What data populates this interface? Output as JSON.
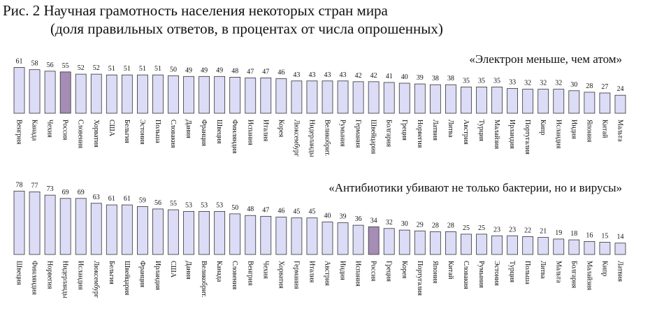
{
  "header": {
    "title": "Рис. 2 Научная грамотность населения некоторых стран мира",
    "subtitle": "(доля правильных ответов, в процентах от числа опрошенных)"
  },
  "chart_data": [
    {
      "type": "bar",
      "title": "«Электрон меньше, чем атом»",
      "categories": [
        "Венгрия",
        "Канада",
        "Чехия",
        "Россия",
        "Словения",
        "Хорватия",
        "США",
        "Бельгия",
        "Эстония",
        "Польша",
        "Словакия",
        "Дания",
        "Франция",
        "Швеция",
        "Финляндия",
        "Испания",
        "Италия",
        "Корея",
        "Люксембург",
        "Нидерланды",
        "Великобрит.",
        "Румыния",
        "Германия",
        "Швейцария",
        "Болгария",
        "Греция",
        "Норвегия",
        "Латвия",
        "Литва",
        "Австрия",
        "Турция",
        "Малайзия",
        "Ирландия",
        "Португалия",
        "Кипр",
        "Исландия",
        "Индия",
        "Япония",
        "Китай",
        "Мальта"
      ],
      "values": [
        61,
        58,
        56,
        55,
        52,
        52,
        51,
        51,
        51,
        51,
        50,
        49,
        49,
        49,
        48,
        47,
        47,
        46,
        43,
        43,
        43,
        43,
        42,
        42,
        41,
        40,
        39,
        38,
        38,
        35,
        35,
        35,
        33,
        32,
        32,
        32,
        30,
        28,
        27,
        24
      ],
      "color": "#dcdcf7",
      "highlight": {
        "category": "Россия",
        "color": "#a58db5"
      },
      "ylim": [
        0,
        80
      ]
    },
    {
      "type": "bar",
      "title": "«Антибиотики убивают не только бактерии, но и вирусы»",
      "categories": [
        "Швеция",
        "Финляндия",
        "Норвегия",
        "Нидерланды",
        "Исландия",
        "Люксембург",
        "Бельгия",
        "Швейцария",
        "Франция",
        "Ирландия",
        "США",
        "Дания",
        "Великобрит.",
        "Канада",
        "Словения",
        "Венгрия",
        "Чехия",
        "Хорватия",
        "Германия",
        "Италия",
        "Австрия",
        "Индия",
        "Испания",
        "Россия",
        "Греция",
        "Корея",
        "Португалия",
        "Япония",
        "Китай",
        "Словакия",
        "Румыния",
        "Эстония",
        "Турция",
        "Польша",
        "Литва",
        "Мальта",
        "Болгария",
        "Малайзия",
        "Кипр",
        "Латвия"
      ],
      "values": [
        78,
        77,
        73,
        69,
        69,
        63,
        61,
        61,
        59,
        56,
        55,
        53,
        53,
        53,
        50,
        48,
        47,
        46,
        45,
        45,
        40,
        39,
        36,
        34,
        32,
        30,
        29,
        28,
        28,
        25,
        25,
        23,
        23,
        22,
        21,
        19,
        18,
        16,
        15,
        14
      ],
      "color": "#dcdcf7",
      "highlight": {
        "category": "Россия",
        "color": "#a58db5"
      },
      "ylim": [
        0,
        80
      ]
    }
  ]
}
